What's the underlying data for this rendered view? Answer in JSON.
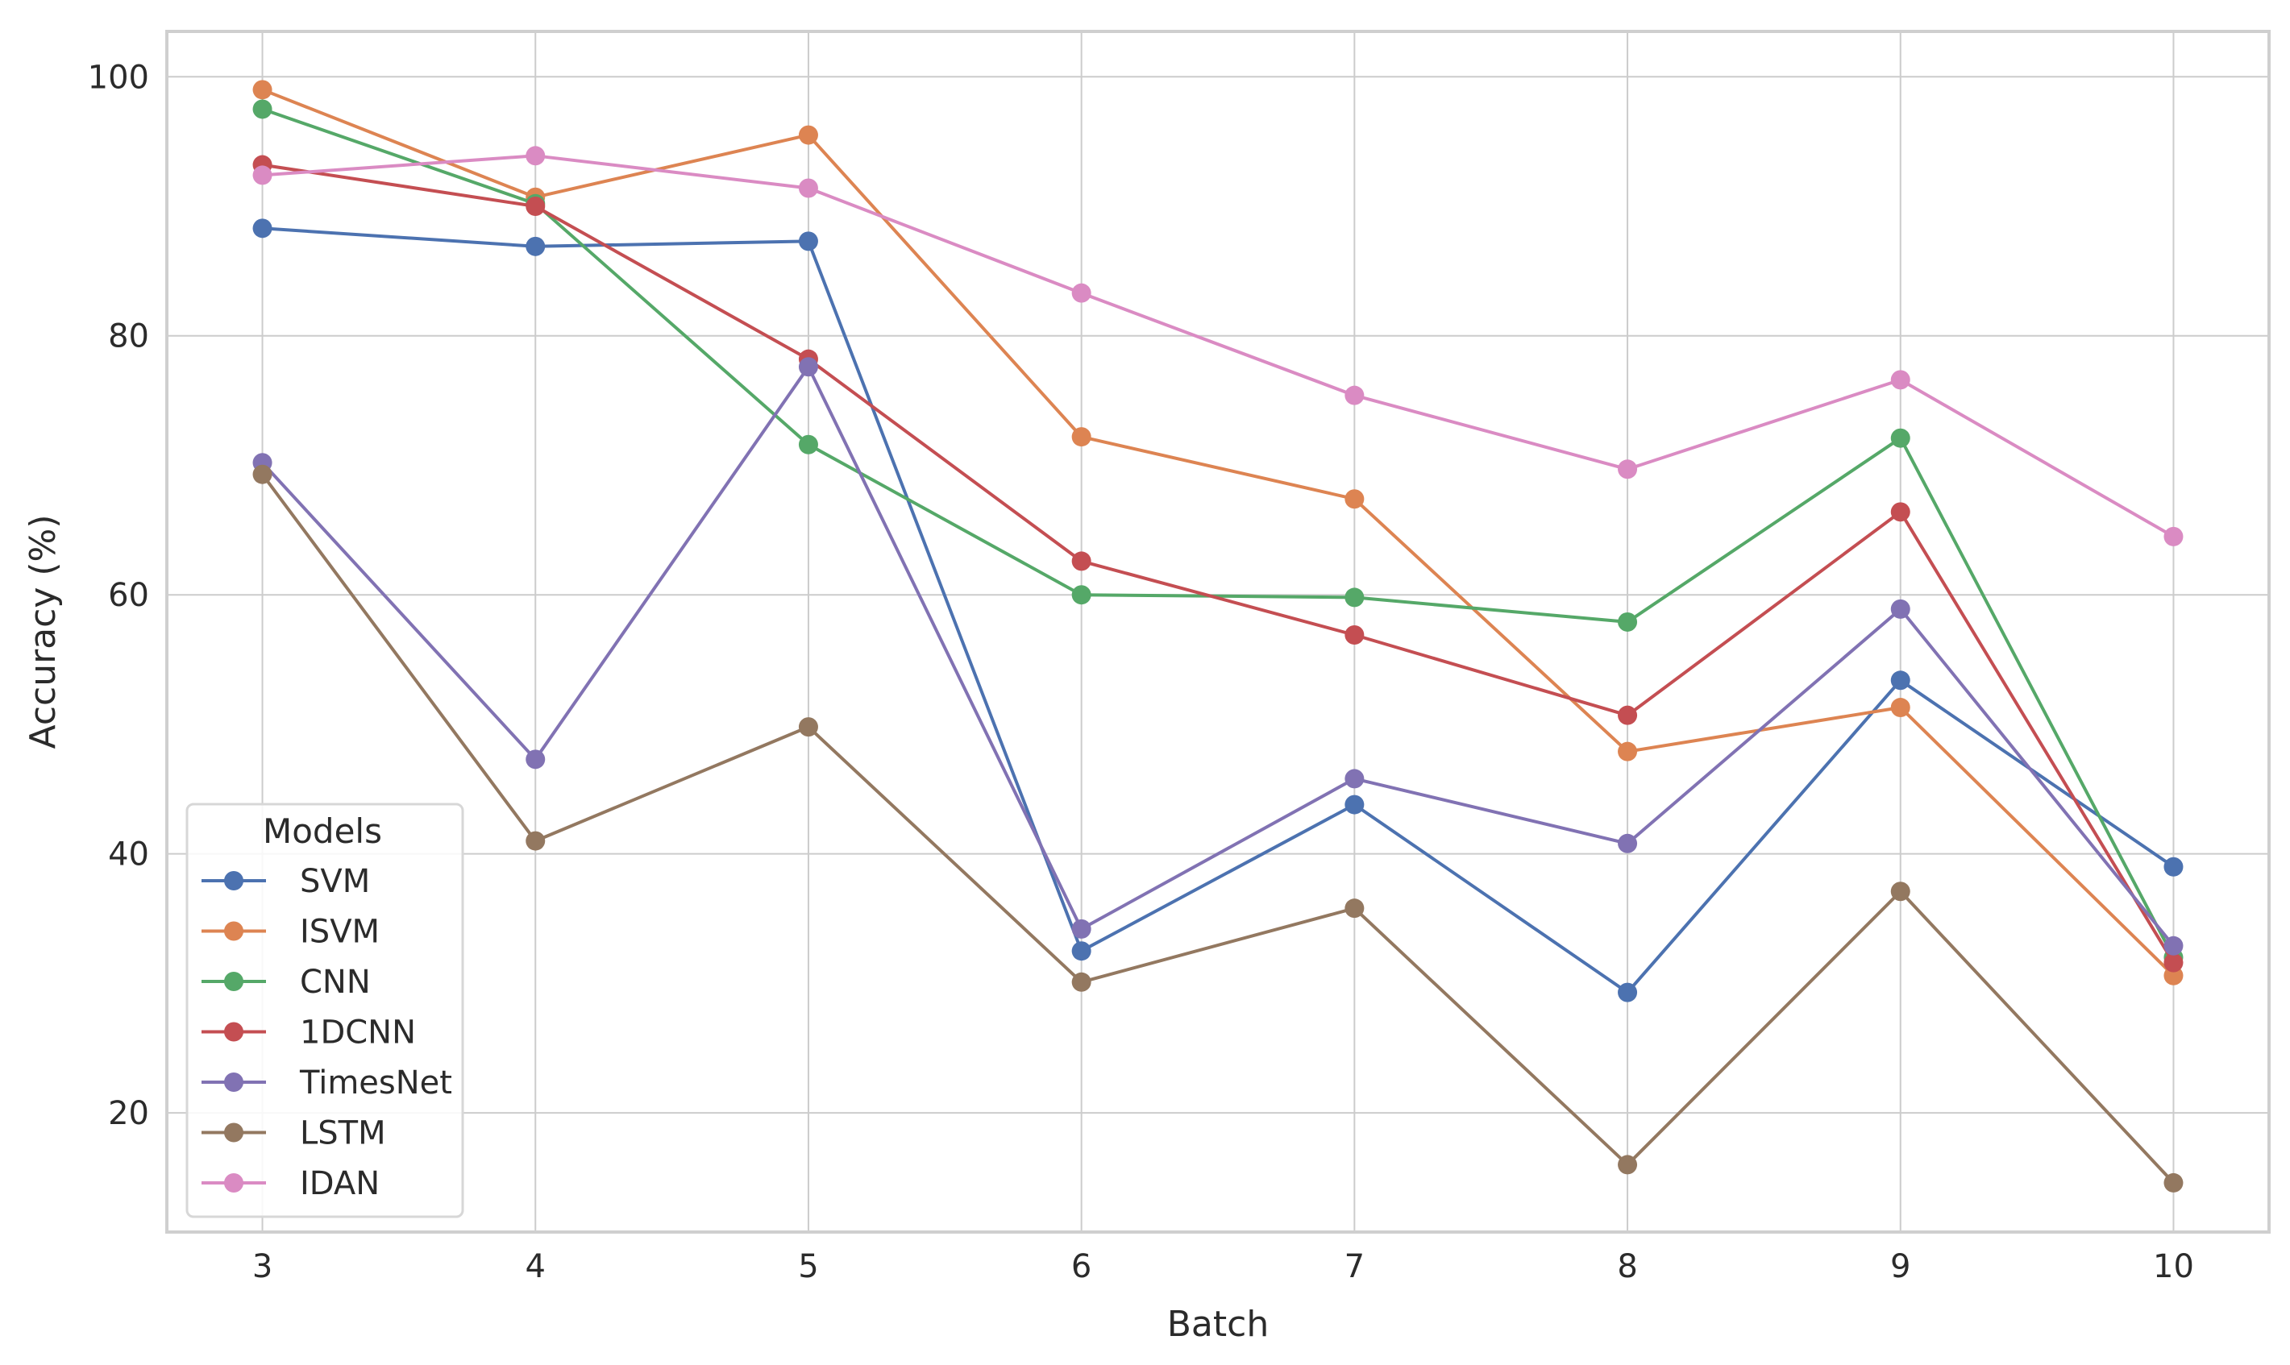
{
  "chart_data": {
    "type": "line",
    "title": "",
    "xlabel": "Batch",
    "ylabel": "Accuracy (%)",
    "x": [
      3,
      4,
      5,
      6,
      7,
      8,
      9,
      10
    ],
    "x_tick_labels": [
      "3",
      "4",
      "5",
      "6",
      "7",
      "8",
      "9",
      "10"
    ],
    "y_ticks": [
      20,
      40,
      60,
      80,
      100
    ],
    "y_tick_labels": [
      "20",
      "40",
      "60",
      "80",
      "100"
    ],
    "xlim": [
      2.65,
      10.35
    ],
    "ylim": [
      10.8,
      103.5
    ],
    "grid": true,
    "legend": {
      "title": "Models",
      "placement": "bottom-left"
    },
    "series": [
      {
        "name": "SVM",
        "color": "#4c72b0",
        "values": [
          88.3,
          86.9,
          87.3,
          32.5,
          43.8,
          29.3,
          53.4,
          39.0
        ]
      },
      {
        "name": "ISVM",
        "color": "#dd8452",
        "values": [
          99.0,
          90.7,
          95.5,
          72.2,
          67.4,
          47.9,
          51.3,
          30.6
        ]
      },
      {
        "name": "CNN",
        "color": "#55a868",
        "values": [
          97.5,
          90.2,
          71.6,
          60.0,
          59.8,
          57.9,
          72.1,
          32.0
        ]
      },
      {
        "name": "1DCNN",
        "color": "#c44e52",
        "values": [
          93.2,
          90.0,
          78.2,
          62.6,
          56.9,
          50.7,
          66.4,
          31.6
        ]
      },
      {
        "name": "TimesNet",
        "color": "#8172b3",
        "values": [
          70.2,
          47.3,
          77.6,
          34.2,
          45.8,
          40.8,
          58.9,
          32.9
        ]
      },
      {
        "name": "LSTM",
        "color": "#937860",
        "values": [
          69.3,
          41.0,
          49.8,
          30.1,
          35.8,
          16.0,
          37.1,
          14.6
        ]
      },
      {
        "name": "IDAN",
        "color": "#da8bc3",
        "values": [
          92.4,
          93.9,
          91.4,
          83.3,
          75.4,
          69.7,
          76.6,
          64.5
        ]
      }
    ]
  }
}
